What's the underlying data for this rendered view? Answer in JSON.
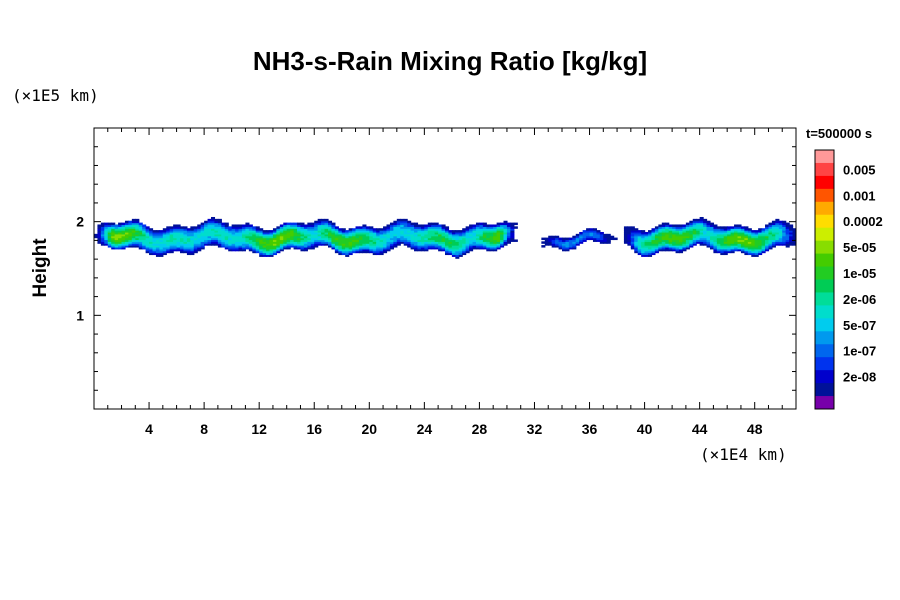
{
  "chart_data": {
    "type": "heatmap",
    "title": "NH3-s-Rain Mixing Ratio [kg/kg]",
    "ylabel": "Height",
    "xlabel": "",
    "x_unit": "(×1E4 km)",
    "y_unit": "(×1E5 km)",
    "time_label": "t=500000 s",
    "xlim": [
      0,
      51
    ],
    "ylim": [
      0,
      3
    ],
    "x_ticks": [
      4,
      8,
      12,
      16,
      20,
      24,
      28,
      32,
      36,
      40,
      44,
      48
    ],
    "y_ticks": [
      1,
      2
    ],
    "color_levels": [
      {
        "label": "",
        "color": "#ff9999"
      },
      {
        "label": "0.005",
        "color": "#ff4444"
      },
      {
        "label": "",
        "color": "#ff0000"
      },
      {
        "label": "0.001",
        "color": "#ff5500"
      },
      {
        "label": "",
        "color": "#ffaa00"
      },
      {
        "label": "0.0002",
        "color": "#ffdd00"
      },
      {
        "label": "",
        "color": "#ccee00"
      },
      {
        "label": "5e-05",
        "color": "#88dd00"
      },
      {
        "label": "",
        "color": "#44cc00"
      },
      {
        "label": "1e-05",
        "color": "#22cc22"
      },
      {
        "label": "",
        "color": "#00cc55"
      },
      {
        "label": "2e-06",
        "color": "#00dd99"
      },
      {
        "label": "",
        "color": "#00ddcc"
      },
      {
        "label": "5e-07",
        "color": "#00ccee"
      },
      {
        "label": "",
        "color": "#0099ee"
      },
      {
        "label": "1e-07",
        "color": "#0066ee"
      },
      {
        "label": "",
        "color": "#0033ee"
      },
      {
        "label": "2e-08",
        "color": "#0000cc"
      },
      {
        "label": "",
        "color": "#001199"
      },
      {
        "label": "",
        "color": "#7700aa"
      }
    ],
    "cloud_bands": [
      {
        "x0": 0,
        "x1": 30.5,
        "y_center": 1.82,
        "half_thickness": 0.13,
        "peak_level": 0.7
      },
      {
        "x0": 32.3,
        "x1": 37.8,
        "y_center": 1.8,
        "half_thickness": 0.06,
        "peak_level": 0.4
      },
      {
        "x0": 38.3,
        "x1": 51,
        "y_center": 1.82,
        "half_thickness": 0.13,
        "peak_level": 0.7
      }
    ],
    "grid": false
  }
}
